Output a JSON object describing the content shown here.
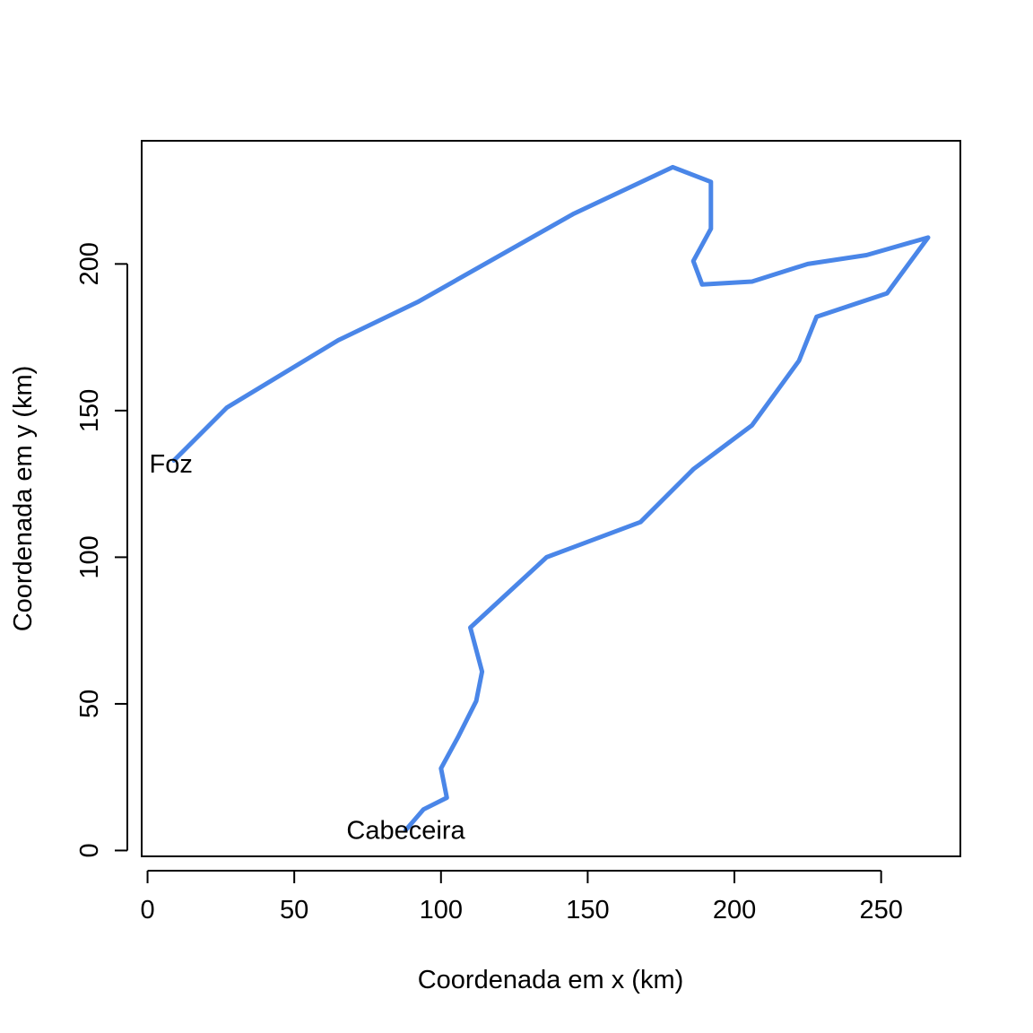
{
  "chart_data": {
    "type": "line",
    "xlabel": "Coordenada em x (km)",
    "ylabel": "Coordenada em y (km)",
    "xlim": [
      -2,
      277
    ],
    "ylim": [
      -2,
      242
    ],
    "xticks": [
      0,
      50,
      100,
      150,
      200,
      250
    ],
    "yticks": [
      0,
      50,
      100,
      150,
      200
    ],
    "xtick_labels": [
      "0",
      "50",
      "100",
      "150",
      "200",
      "250"
    ],
    "ytick_labels": [
      "0",
      "50",
      "100",
      "150",
      "200"
    ],
    "grid": false,
    "line_color": "#4A86E8",
    "series": [
      {
        "x": [
          88,
          94,
          102,
          100,
          106,
          112,
          114,
          110,
          136,
          168,
          186,
          206,
          222,
          228,
          252,
          266,
          245,
          225,
          206,
          189,
          186,
          192,
          192,
          179,
          145,
          92,
          65,
          27,
          9
        ],
        "y": [
          7,
          14,
          18,
          28,
          39,
          51,
          61,
          76,
          100,
          112,
          130,
          145,
          167,
          182,
          190,
          209,
          203,
          200,
          194,
          193,
          201,
          212,
          228,
          233,
          217,
          187,
          174,
          151,
          133
        ]
      }
    ],
    "annotations": [
      {
        "text": "Cabeceira",
        "x": 88,
        "y": 7
      },
      {
        "text": "Foz",
        "x": 8,
        "y": 132
      }
    ]
  }
}
